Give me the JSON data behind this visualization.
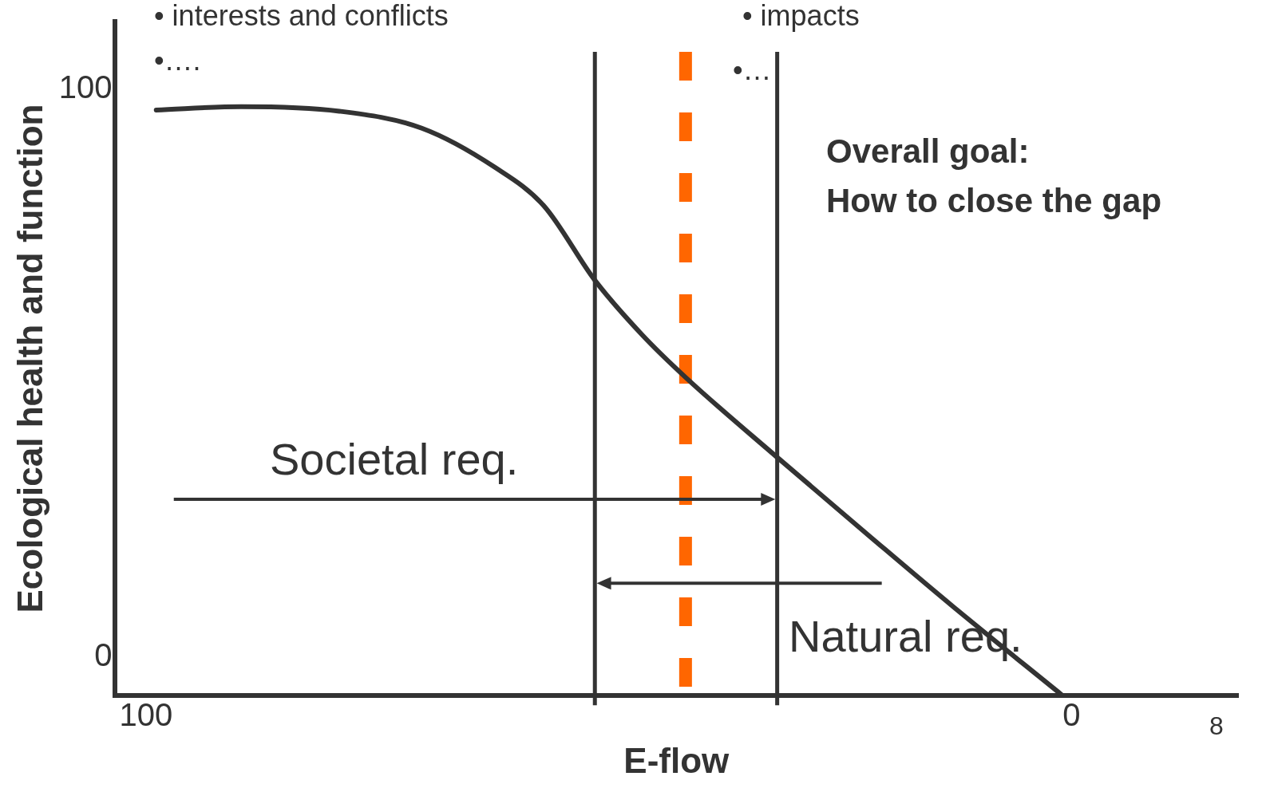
{
  "chart_data": {
    "type": "line",
    "xlabel": "E-flow",
    "ylabel": "Ecological health and function",
    "xlim": [
      103.4,
      -18
    ],
    "xticks": [
      100,
      0
    ],
    "ylim": [
      -6.8,
      112
    ],
    "yticks": [
      0,
      100
    ],
    "grid": false,
    "legend": false,
    "marker": "none",
    "line_style": "solid",
    "series": [
      {
        "color": "#333333",
        "x": [
          98.9,
          89.7,
          79.1,
          70.2,
          62.3,
          57.0,
          51.5,
          46.4,
          41.7,
          31.8,
          21.6,
          12.8,
          1.1
        ],
        "values": [
          96.4,
          97.0,
          96.2,
          93.2,
          86.3,
          79.5,
          66.4,
          56.8,
          49.3,
          35.2,
          21.0,
          8.9,
          -6.6
        ]
      }
    ],
    "ref_lines": [
      {
        "axis": "x",
        "value": 51.5,
        "color": "#333333",
        "line_style": "solid"
      },
      {
        "axis": "x",
        "value": 41.7,
        "color": "#ff6600",
        "line_style": "dashed"
      },
      {
        "axis": "x",
        "value": 31.8,
        "color": "#333333",
        "line_style": "solid"
      }
    ],
    "annotations": [
      "• interests and conflicts",
      "•….",
      "• impacts",
      "•…",
      "Overall goal:\nHow to close the gap",
      "Societal req.",
      "Natural req.",
      "8"
    ]
  }
}
